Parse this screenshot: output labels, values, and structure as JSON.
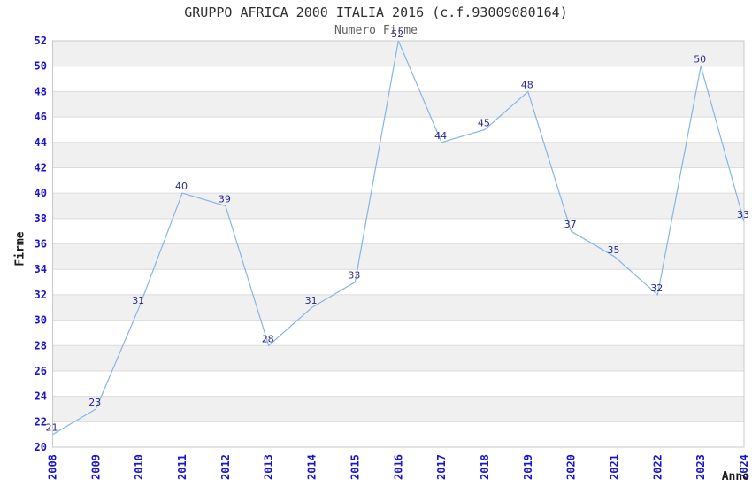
{
  "chart_data": {
    "type": "line",
    "title": "GRUPPO AFRICA 2000 ITALIA 2016 (c.f.93009080164)",
    "subtitle": "Numero Firme",
    "xlabel": "Anno",
    "ylabel": "Firme",
    "x": [
      2008,
      2009,
      2010,
      2011,
      2012,
      2013,
      2014,
      2015,
      2016,
      2017,
      2018,
      2019,
      2020,
      2021,
      2022,
      2023,
      2024
    ],
    "values": [
      21,
      23,
      31,
      40,
      39,
      28,
      31,
      33,
      52,
      44,
      45,
      48,
      37,
      35,
      32,
      50,
      33
    ],
    "ylim": [
      20,
      52
    ],
    "ytick_step": 2,
    "grid": "horizontal-bands",
    "legend": false,
    "point_markers": false,
    "colors": {
      "line": "#85b5e6",
      "data_label": "#29298a",
      "tick_label": "#1715d1",
      "axis_title": "#1a1a1a",
      "title": "#2f2f2f",
      "subtitle": "#606060",
      "band_gray": "#f0f0f0",
      "band_white": "#ffffff",
      "gridline": "#dcdcdc",
      "plot_border": "#c8c8c8",
      "background": "#ffffff"
    }
  }
}
